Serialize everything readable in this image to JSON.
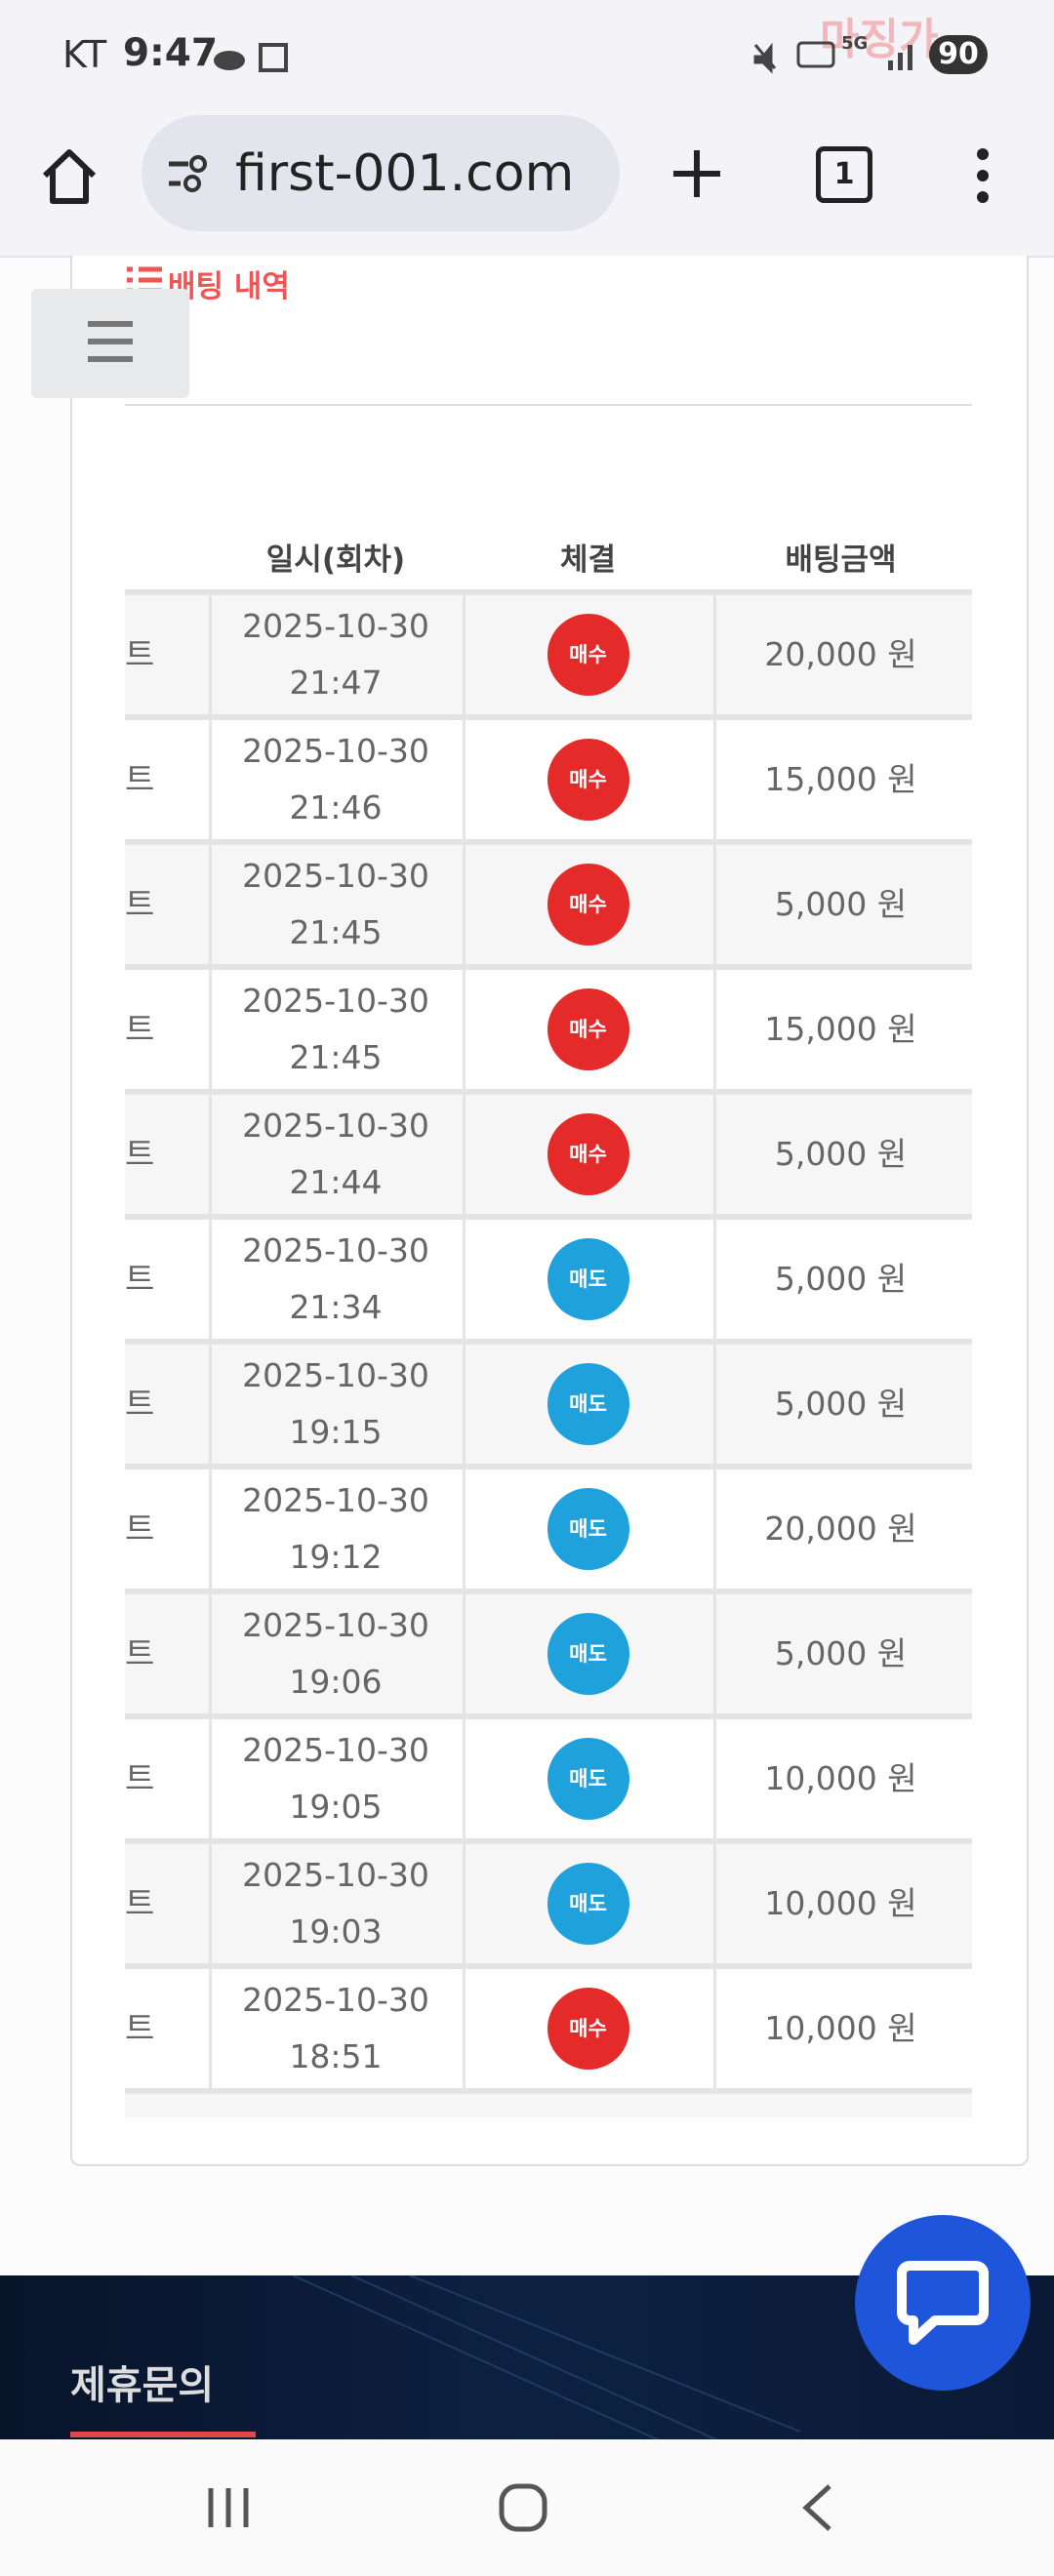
{
  "status_bar": {
    "carrier": "KT",
    "time": "9:47",
    "network": "5G",
    "battery": "90",
    "watermark": "마징가"
  },
  "browser": {
    "url": "first-001.com",
    "tab_count": "1"
  },
  "section": {
    "title": "배팅 내역"
  },
  "table": {
    "headers": [
      "일시(회차)",
      "체결",
      "배팅금액"
    ],
    "rows": [
      [
        "트",
        "2025-10-30",
        "21:47",
        "매수",
        "20,000 원"
      ],
      [
        "트",
        "2025-10-30",
        "21:46",
        "매수",
        "15,000 원"
      ],
      [
        "트",
        "2025-10-30",
        "21:45",
        "매수",
        "5,000 원"
      ],
      [
        "트",
        "2025-10-30",
        "21:45",
        "매수",
        "15,000 원"
      ],
      [
        "트",
        "2025-10-30",
        "21:44",
        "매수",
        "5,000 원"
      ],
      [
        "트",
        "2025-10-30",
        "21:34",
        "매도",
        "5,000 원"
      ],
      [
        "트",
        "2025-10-30",
        "19:15",
        "매도",
        "5,000 원"
      ],
      [
        "트",
        "2025-10-30",
        "19:12",
        "매도",
        "20,000 원"
      ],
      [
        "트",
        "2025-10-30",
        "19:06",
        "매도",
        "5,000 원"
      ],
      [
        "트",
        "2025-10-30",
        "19:05",
        "매도",
        "10,000 원"
      ],
      [
        "트",
        "2025-10-30",
        "19:03",
        "매도",
        "10,000 원"
      ],
      [
        "트",
        "2025-10-30",
        "18:51",
        "매수",
        "10,000 원"
      ]
    ]
  },
  "footer": {
    "title": "제휴문의"
  }
}
